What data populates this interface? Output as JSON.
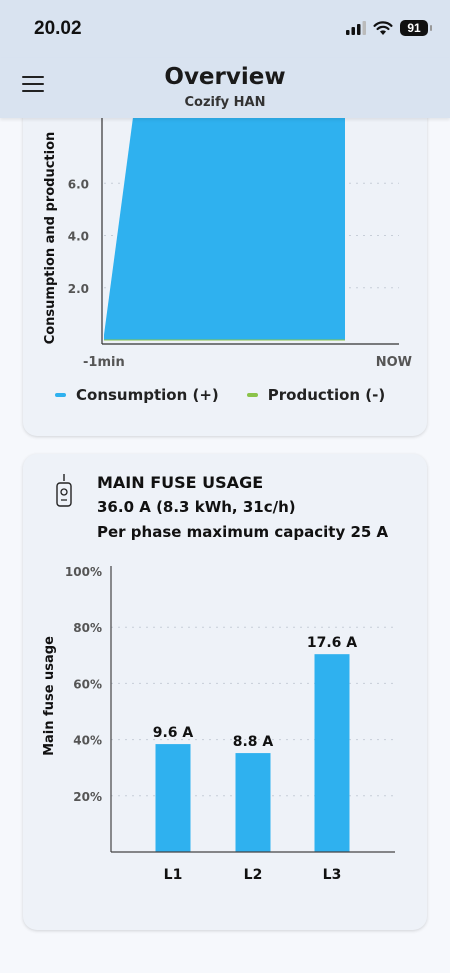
{
  "status_bar": {
    "time": "20.02",
    "battery": "91"
  },
  "header": {
    "title": "Overview",
    "subtitle": "Cozify HAN"
  },
  "consumption_card": {
    "legend": [
      {
        "label": "Consumption (+)",
        "color": "#2fb1ef"
      },
      {
        "label": "Production (-)",
        "color": "#8bc34a"
      }
    ]
  },
  "fuse_card": {
    "title": "MAIN FUSE USAGE",
    "line1": "36.0 A (8.3 kWh, 31c/h)",
    "line2": "Per phase maximum capacity 25 A"
  },
  "chart_data": [
    {
      "type": "area",
      "ylabel": "Consumption and production",
      "x_tick_labels": [
        "-1min",
        "NOW"
      ],
      "y_ticks": [
        2.0,
        4.0,
        6.0
      ],
      "y_tick_labels": [
        "2.0",
        "4.0",
        "6.0"
      ],
      "ylim": [
        0,
        8.5
      ],
      "grid": true,
      "legend": "bottom",
      "series": [
        {
          "name": "Consumption (+)",
          "color": "#2fb1ef",
          "x": [
            0,
            0.12,
            1
          ],
          "values": [
            0.2,
            8.5,
            8.5
          ]
        },
        {
          "name": "Production (-)",
          "color": "#8bc34a",
          "x": [
            0,
            1
          ],
          "values": [
            0,
            0
          ]
        }
      ]
    },
    {
      "type": "bar",
      "ylabel": "Main fuse usage",
      "categories": [
        "L1",
        "L2",
        "L3"
      ],
      "values": [
        38.4,
        35.2,
        70.4
      ],
      "data_labels": [
        "9.6 A",
        "8.8 A",
        "17.6 A"
      ],
      "y_ticks": [
        20,
        40,
        60,
        80,
        100
      ],
      "y_tick_labels": [
        "20%",
        "40%",
        "60%",
        "80%",
        "100%"
      ],
      "ylim": [
        0,
        100
      ],
      "grid": true,
      "color": "#2fb1ef"
    }
  ]
}
